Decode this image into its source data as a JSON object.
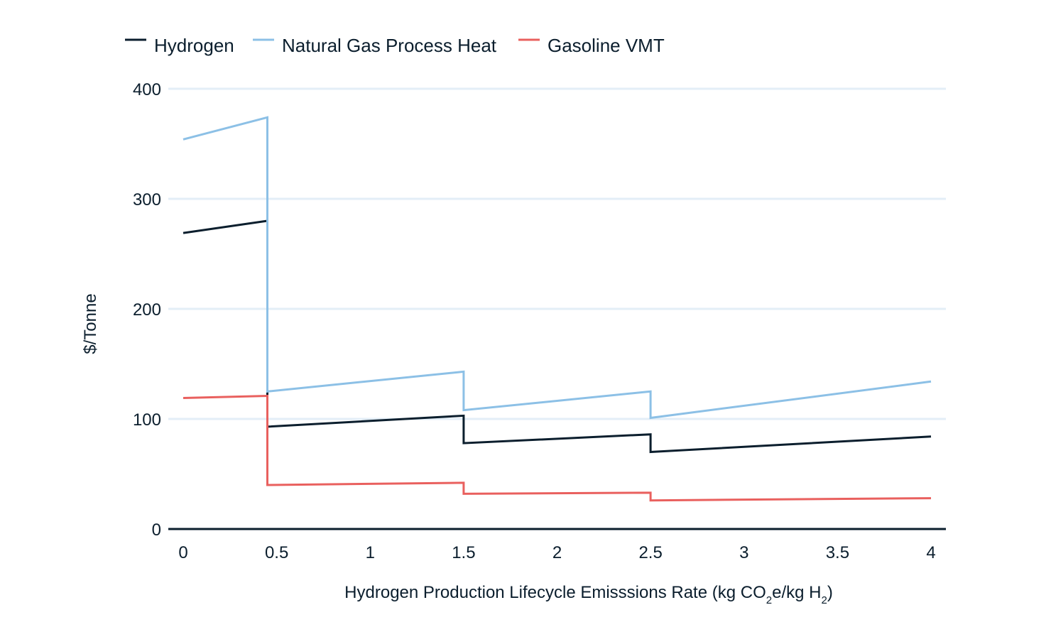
{
  "chart_data": {
    "type": "line",
    "xlabel_parts": {
      "main": "Hydrogen Production Lifecycle Emisssions Rate (kg CO",
      "sub1": "2",
      "mid": "e/kg H",
      "sub2": "2",
      "end": ")"
    },
    "ylabel": "$/Tonne",
    "xlim": [
      0,
      4
    ],
    "ylim": [
      0,
      400
    ],
    "x_ticks": [
      0,
      0.5,
      1,
      1.5,
      2,
      2.5,
      3,
      3.5,
      4
    ],
    "x_tick_labels": [
      "0",
      "0.5",
      "1",
      "1.5",
      "2",
      "2.5",
      "3",
      "3.5",
      "4"
    ],
    "y_ticks": [
      0,
      100,
      200,
      300,
      400
    ],
    "y_tick_labels": [
      "0",
      "100",
      "200",
      "300",
      "400"
    ],
    "grid": "horizontal",
    "legend_position": "top-left",
    "series": [
      {
        "name": "Hydrogen",
        "color": "#0b1e2d",
        "points": [
          [
            0,
            269
          ],
          [
            0.45,
            280
          ],
          [
            0.45,
            93
          ],
          [
            1.5,
            103
          ],
          [
            1.5,
            78
          ],
          [
            2.5,
            86
          ],
          [
            2.5,
            70
          ],
          [
            4,
            84
          ]
        ]
      },
      {
        "name": "Natural Gas Process Heat",
        "color": "#8cc0e6",
        "points": [
          [
            0,
            354
          ],
          [
            0.45,
            374
          ],
          [
            0.45,
            125
          ],
          [
            1.5,
            143
          ],
          [
            1.5,
            108
          ],
          [
            2.5,
            125
          ],
          [
            2.5,
            101
          ],
          [
            4,
            134
          ]
        ]
      },
      {
        "name": "Gasoline VMT",
        "color": "#e9605e",
        "points": [
          [
            0,
            119
          ],
          [
            0.45,
            121
          ],
          [
            0.45,
            40
          ],
          [
            1.5,
            42
          ],
          [
            1.5,
            32
          ],
          [
            2.5,
            33
          ],
          [
            2.5,
            26
          ],
          [
            4,
            28
          ]
        ]
      }
    ]
  }
}
